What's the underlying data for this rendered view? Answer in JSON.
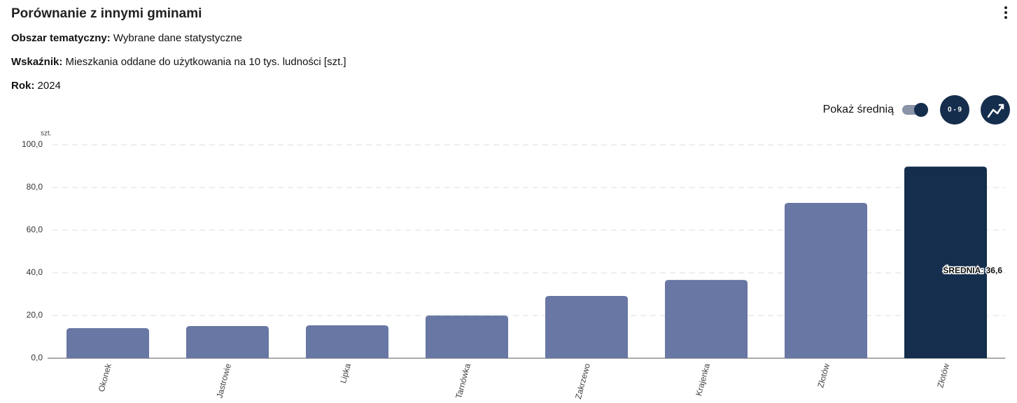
{
  "header": {
    "title": "Porównanie z innymi gminami",
    "fields": [
      {
        "label": "Obszar tematyczny:",
        "value": "Wybrane dane statystyczne"
      },
      {
        "label": "Wskaźnik:",
        "value": "Mieszkania oddane do użytkowania na 10 tys. ludności [szt.]"
      },
      {
        "label": "Rok:",
        "value": "2024"
      }
    ]
  },
  "controls": {
    "toggle_label": "Pokaż średnią",
    "range_button": "0 - 9"
  },
  "chart_data": {
    "type": "bar",
    "y_unit": "szt.",
    "categories": [
      "Okonek",
      "Jastrowie",
      "Lipka",
      "Tarnówka",
      "Zakrzewo",
      "Krajenka",
      "Złotów",
      "Złotów"
    ],
    "values": [
      14.1,
      15.1,
      15.4,
      20.0,
      29.2,
      36.7,
      72.8,
      89.8
    ],
    "colors": [
      "#6877a3",
      "#6877a3",
      "#6877a3",
      "#6877a3",
      "#6877a3",
      "#6877a3",
      "#6877a3",
      "#152e4d"
    ],
    "ylim": [
      0,
      100
    ],
    "yticks": [
      {
        "value": 0,
        "label": "0,0"
      },
      {
        "value": 20,
        "label": "20,0"
      },
      {
        "value": 40,
        "label": "40,0"
      },
      {
        "value": 60,
        "label": "60,0"
      },
      {
        "value": 80,
        "label": "80,0"
      },
      {
        "value": 100,
        "label": "100,0"
      }
    ],
    "grid": true,
    "average": {
      "value": 36.6,
      "label": "ŚREDNIA: 36,6",
      "color": "#1a73c8"
    }
  }
}
